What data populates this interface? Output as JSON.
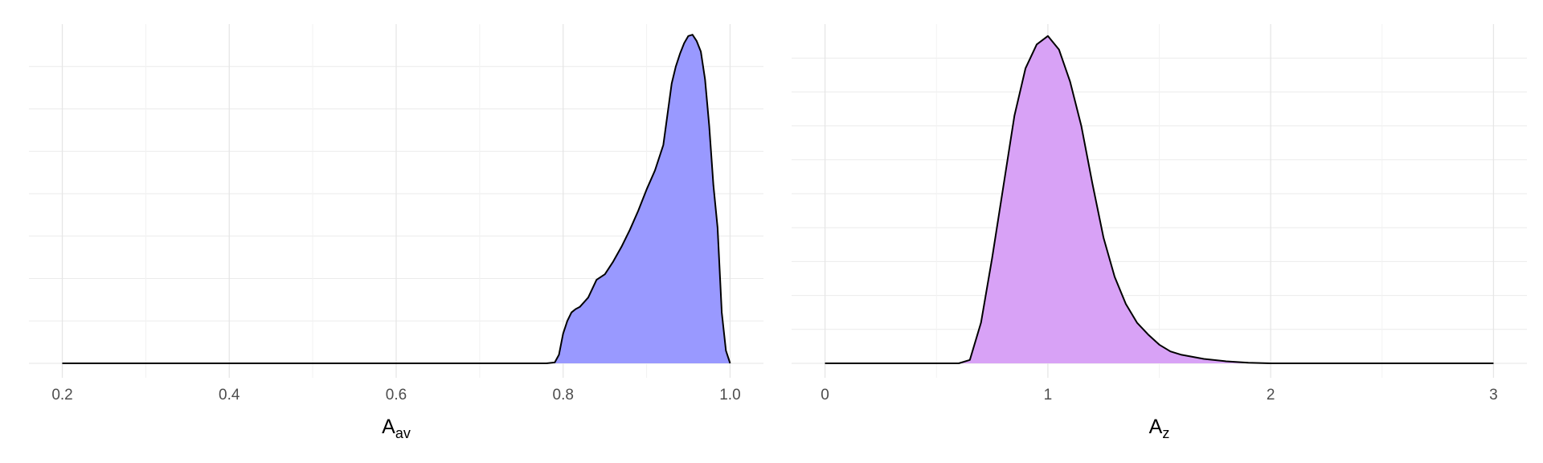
{
  "chart_data": [
    {
      "type": "area",
      "xlabel": "A",
      "xlabel_sub": "av",
      "xlim": [
        0.16,
        1.04
      ],
      "ylim": [
        0,
        8
      ],
      "x_ticks": [
        0.2,
        0.4,
        0.6,
        0.8,
        1.0
      ],
      "x_tick_labels": [
        "0.2",
        "0.4",
        "0.6",
        "0.8",
        "1.0"
      ],
      "x_minor": [
        0.3,
        0.5,
        0.7,
        0.9
      ],
      "y_grid": [
        1,
        2,
        3,
        4,
        5,
        6,
        7
      ],
      "grid": true,
      "fill_color": "#9999FF",
      "line_color": "#000000",
      "series": [
        {
          "x": [
            0.2,
            0.78,
            0.79,
            0.795,
            0.8,
            0.805,
            0.81,
            0.815,
            0.82,
            0.83,
            0.84,
            0.85,
            0.86,
            0.87,
            0.88,
            0.89,
            0.9,
            0.91,
            0.92,
            0.93,
            0.935,
            0.94,
            0.945,
            0.95,
            0.955,
            0.96,
            0.965,
            0.97,
            0.975,
            0.98,
            0.985,
            0.99,
            0.995,
            1.0
          ],
          "y": [
            0,
            0,
            0.02,
            0.2,
            0.7,
            1.0,
            1.2,
            1.28,
            1.33,
            1.55,
            1.97,
            2.1,
            2.4,
            2.75,
            3.15,
            3.6,
            4.1,
            4.55,
            5.15,
            6.6,
            7.0,
            7.3,
            7.55,
            7.72,
            7.75,
            7.6,
            7.35,
            6.7,
            5.6,
            4.2,
            3.2,
            1.2,
            0.3,
            0
          ]
        }
      ]
    },
    {
      "type": "area",
      "xlabel": "A",
      "xlabel_sub": "z",
      "xlim": [
        -0.15,
        3.15
      ],
      "ylim": [
        0,
        10
      ],
      "x_ticks": [
        0,
        1,
        2,
        3
      ],
      "x_tick_labels": [
        "0",
        "1",
        "2",
        "3"
      ],
      "x_minor": [
        0.5,
        1.5,
        2.5
      ],
      "y_grid": [
        1,
        2,
        3,
        4,
        5,
        6,
        7,
        8,
        9
      ],
      "grid": true,
      "fill_color": "#D8A2F6",
      "line_color": "#000000",
      "series": [
        {
          "x": [
            0,
            0.6,
            0.65,
            0.7,
            0.75,
            0.8,
            0.85,
            0.9,
            0.95,
            1.0,
            1.05,
            1.1,
            1.15,
            1.2,
            1.25,
            1.3,
            1.35,
            1.4,
            1.45,
            1.5,
            1.55,
            1.6,
            1.7,
            1.8,
            1.9,
            2.0,
            3.0
          ],
          "y": [
            0,
            0,
            0.1,
            1.2,
            3.1,
            5.2,
            7.3,
            8.7,
            9.4,
            9.65,
            9.25,
            8.3,
            7.0,
            5.3,
            3.7,
            2.55,
            1.75,
            1.2,
            0.85,
            0.55,
            0.35,
            0.25,
            0.13,
            0.06,
            0.02,
            0,
            0
          ]
        }
      ]
    }
  ]
}
